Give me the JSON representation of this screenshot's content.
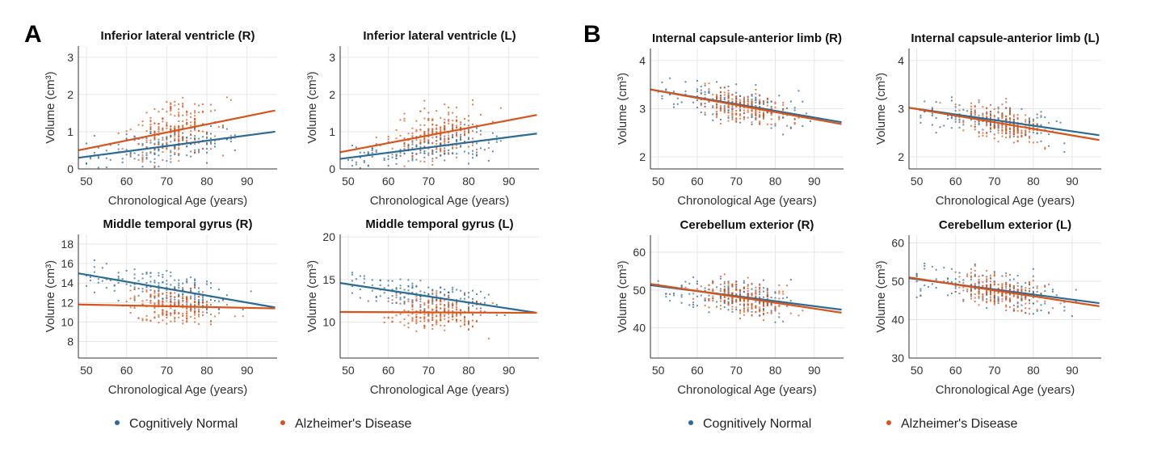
{
  "colors": {
    "cognitively_normal": "#2b6b94",
    "alzheimers_disease": "#d9541a"
  },
  "panels": [
    {
      "label": "A",
      "legend": [
        "Cognitively Normal",
        "Alzheimer's Disease"
      ]
    },
    {
      "label": "B",
      "legend": [
        "Cognitively Normal",
        "Alzheimer's Disease"
      ]
    }
  ],
  "chart_data": [
    {
      "type": "scatter",
      "panel": "A",
      "title": "Inferior lateral ventricle (R)",
      "xlabel": "Chronological Age (years)",
      "ylabel": "Volume (cm³)",
      "xlim": [
        48,
        97.5
      ],
      "ylim": [
        0,
        3.3
      ],
      "xticks": [
        50,
        60,
        70,
        80,
        90
      ],
      "yticks": [
        0,
        1,
        2,
        3
      ],
      "grid": true,
      "series": [
        {
          "name": "Cognitively Normal",
          "fit": {
            "x": [
              48,
              97
            ],
            "y": [
              0.3,
              1.0
            ]
          }
        },
        {
          "name": "Alzheimer's Disease",
          "fit": {
            "x": [
              48,
              97
            ],
            "y": [
              0.5,
              1.57
            ]
          }
        }
      ]
    },
    {
      "type": "scatter",
      "panel": "A",
      "title": "Inferior lateral ventricle (L)",
      "xlabel": "Chronological Age (years)",
      "ylabel": "Volume (cm³)",
      "xlim": [
        48,
        97.5
      ],
      "ylim": [
        0,
        3.3
      ],
      "xticks": [
        50,
        60,
        70,
        80,
        90
      ],
      "yticks": [
        0,
        1,
        2,
        3
      ],
      "grid": true,
      "series": [
        {
          "name": "Cognitively Normal",
          "fit": {
            "x": [
              48,
              97
            ],
            "y": [
              0.27,
              0.95
            ]
          }
        },
        {
          "name": "Alzheimer's Disease",
          "fit": {
            "x": [
              48,
              97
            ],
            "y": [
              0.45,
              1.45
            ]
          }
        }
      ]
    },
    {
      "type": "scatter",
      "panel": "A",
      "title": "Middle temporal gyrus (R)",
      "xlabel": "Chronological Age (years)",
      "ylabel": "Volume (cm³)",
      "xlim": [
        48,
        97.5
      ],
      "ylim": [
        6.3,
        19
      ],
      "xticks": [
        50,
        60,
        70,
        80,
        90
      ],
      "yticks": [
        8,
        10,
        12,
        14,
        16,
        18
      ],
      "grid": true,
      "series": [
        {
          "name": "Cognitively Normal",
          "fit": {
            "x": [
              48,
              97
            ],
            "y": [
              15.0,
              11.5
            ]
          }
        },
        {
          "name": "Alzheimer's Disease",
          "fit": {
            "x": [
              48,
              97
            ],
            "y": [
              11.8,
              11.4
            ]
          }
        }
      ]
    },
    {
      "type": "scatter",
      "panel": "A",
      "title": "Middle temporal gyrus (L)",
      "xlabel": "Chronological Age (years)",
      "ylabel": "Volume (cm³)",
      "xlim": [
        48,
        97.5
      ],
      "ylim": [
        5.8,
        20.3
      ],
      "xticks": [
        50,
        60,
        70,
        80,
        90
      ],
      "yticks": [
        10,
        15,
        20
      ],
      "grid": true,
      "series": [
        {
          "name": "Cognitively Normal",
          "fit": {
            "x": [
              48,
              97
            ],
            "y": [
              14.6,
              11.1
            ]
          }
        },
        {
          "name": "Alzheimer's Disease",
          "fit": {
            "x": [
              48,
              97
            ],
            "y": [
              11.2,
              11.1
            ]
          }
        }
      ]
    },
    {
      "type": "scatter",
      "panel": "B",
      "title": "Internal capsule-anterior limb (R)",
      "xlabel": "Chronological Age (years)",
      "ylabel": "Volume (cm³)",
      "xlim": [
        48,
        97.5
      ],
      "ylim": [
        1.75,
        4.25
      ],
      "xticks": [
        50,
        60,
        70,
        80,
        90
      ],
      "yticks": [
        2,
        3,
        4
      ],
      "grid": true,
      "series": [
        {
          "name": "Cognitively Normal",
          "fit": {
            "x": [
              48,
              97
            ],
            "y": [
              3.4,
              2.72
            ]
          }
        },
        {
          "name": "Alzheimer's Disease",
          "fit": {
            "x": [
              48,
              97
            ],
            "y": [
              3.4,
              2.68
            ]
          }
        }
      ]
    },
    {
      "type": "scatter",
      "panel": "B",
      "title": "Internal capsule-anterior limb (L)",
      "xlabel": "Chronological Age (years)",
      "ylabel": "Volume (cm³)",
      "xlim": [
        48,
        97.5
      ],
      "ylim": [
        1.75,
        4.25
      ],
      "xticks": [
        50,
        60,
        70,
        80,
        90
      ],
      "yticks": [
        2,
        3,
        4
      ],
      "grid": true,
      "series": [
        {
          "name": "Cognitively Normal",
          "fit": {
            "x": [
              48,
              97
            ],
            "y": [
              3.02,
              2.45
            ]
          }
        },
        {
          "name": "Alzheimer's Disease",
          "fit": {
            "x": [
              48,
              97
            ],
            "y": [
              3.02,
              2.35
            ]
          }
        }
      ]
    },
    {
      "type": "scatter",
      "panel": "B",
      "title": "Cerebellum exterior (R)",
      "xlabel": "Chronological Age (years)",
      "ylabel": "Volume (cm³)",
      "xlim": [
        48,
        97.5
      ],
      "ylim": [
        32,
        64.5
      ],
      "xticks": [
        50,
        60,
        70,
        80,
        90
      ],
      "yticks": [
        40,
        50,
        60
      ],
      "grid": true,
      "series": [
        {
          "name": "Cognitively Normal",
          "fit": {
            "x": [
              48,
              97
            ],
            "y": [
              51.3,
              44.8
            ]
          }
        },
        {
          "name": "Alzheimer's Disease",
          "fit": {
            "x": [
              48,
              97
            ],
            "y": [
              51.6,
              44.0
            ]
          }
        }
      ]
    },
    {
      "type": "scatter",
      "panel": "B",
      "title": "Cerebellum exterior (L)",
      "xlabel": "Chronological Age (years)",
      "ylabel": "Volume (cm³)",
      "xlim": [
        48,
        97.5
      ],
      "ylim": [
        30,
        62
      ],
      "xticks": [
        50,
        60,
        70,
        80,
        90
      ],
      "yticks": [
        30,
        40,
        50,
        60
      ],
      "grid": true,
      "series": [
        {
          "name": "Cognitively Normal",
          "fit": {
            "x": [
              48,
              97
            ],
            "y": [
              50.8,
              44.3
            ]
          }
        },
        {
          "name": "Alzheimer's Disease",
          "fit": {
            "x": [
              48,
              97
            ],
            "y": [
              51.0,
              43.5
            ]
          }
        }
      ]
    }
  ]
}
